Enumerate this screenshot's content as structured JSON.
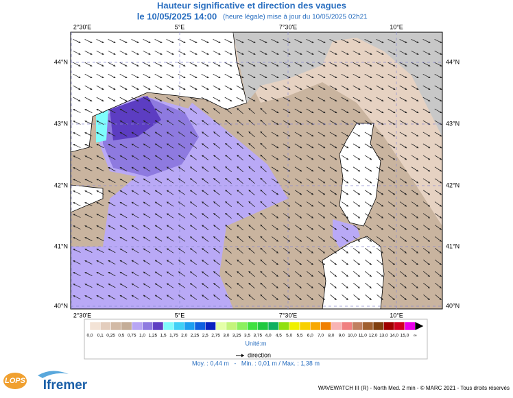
{
  "header": {
    "title": "Hauteur significative et direction des vagues",
    "date": "le 10/05/2025 14:00",
    "update": "(heure légale) mise à jour du 10/05/2025 02h21"
  },
  "map": {
    "lon_labels": [
      "2°30'E",
      "5°E",
      "7°30'E",
      "10°E"
    ],
    "lat_labels": [
      "44°N",
      "43°N",
      "42°N",
      "41°N",
      "40°N"
    ]
  },
  "legend": {
    "labels": [
      "0,0",
      "0,1",
      "0,25",
      "0,5",
      "0,75",
      "1,0",
      "1,25",
      "1,5",
      "1,75",
      "2,0",
      "2,25",
      "2,5",
      "2,75",
      "3,0",
      "3,25",
      "3,5",
      "3,75",
      "4,0",
      "4,5",
      "5,0",
      "5,5",
      "6,0",
      "7,0",
      "8,0",
      "9,0",
      "10,0",
      "11,0",
      "12,0",
      "13,0",
      "14,0",
      "15,0",
      "∞"
    ],
    "colors": [
      "#f3e3d6",
      "#e3cdbd",
      "#d2baa6",
      "#c4ad98",
      "#b8a6f4",
      "#8f7be0",
      "#5f3fc2",
      "#7ffcfc",
      "#40d0f6",
      "#1e9ff0",
      "#1060e0",
      "#0a22c0",
      "#e4ffa8",
      "#c4f47c",
      "#8cf060",
      "#40e040",
      "#20c840",
      "#10b060",
      "#90e010",
      "#f0f000",
      "#f8d000",
      "#f8a800",
      "#f08000",
      "#f8b4b4",
      "#f08080",
      "#c08060",
      "#a06030",
      "#804010",
      "#a00000",
      "#d00020",
      "#e800e8",
      "#900060"
    ],
    "unit": "Unité:m",
    "direction": "direction"
  },
  "stats": "Moy. : 0,44 m   -   Min. : 0,01 m / Max. : 1,38 m",
  "footer": {
    "lops": "LOPS",
    "ifremer": "Ifremer",
    "credit": "WAVEWATCH III (R) - North Med. 2 min - © MARC 2021 - Tous droits réservés"
  }
}
